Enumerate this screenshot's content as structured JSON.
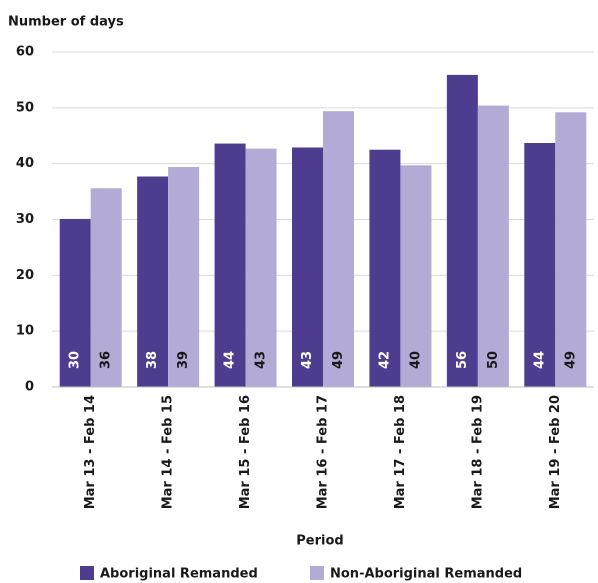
{
  "chart_data": {
    "type": "bar",
    "ylabel": "Number of days",
    "xlabel": "Period",
    "categories": [
      "Mar 13 - Feb 14",
      "Mar 14 - Feb 15",
      "Mar 15 - Feb 16",
      "Mar 16 - Feb 17",
      "Mar 17 - Feb 18",
      "Mar 18 - Feb 19",
      "Mar 19 - Feb 20"
    ],
    "series": [
      {
        "name": "Aboriginal Remanded",
        "color": "#4e3d8e",
        "values": [
          30.1,
          37.7,
          43.6,
          42.9,
          42.5,
          55.9,
          43.7
        ],
        "value_labels": [
          "30",
          "38",
          "44",
          "43",
          "42",
          "56",
          "44"
        ]
      },
      {
        "name": "Non-Aboriginal Remanded",
        "color": "#b3aad6",
        "values": [
          35.6,
          39.4,
          42.7,
          49.4,
          39.7,
          50.4,
          49.2
        ],
        "value_labels": [
          "36",
          "39",
          "43",
          "49",
          "40",
          "50",
          "49"
        ]
      }
    ],
    "ylim": [
      0,
      60
    ],
    "yticks": [
      0,
      10,
      20,
      30,
      40,
      50,
      60
    ],
    "grid": true
  }
}
